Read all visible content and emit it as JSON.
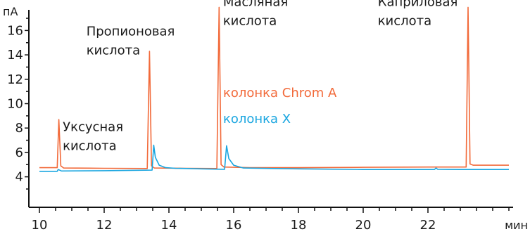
{
  "chart_data": {
    "type": "line",
    "ylabel": "пА",
    "xlabel": "мин",
    "xlim": [
      10,
      24.5
    ],
    "ylim": [
      1.5,
      18.5
    ],
    "x_ticks": [
      10,
      12,
      14,
      16,
      18,
      20,
      22
    ],
    "y_ticks": [
      4,
      6,
      8,
      10,
      12,
      14,
      16
    ],
    "grid": false,
    "legend_position": "middle-right (inline text)",
    "series": [
      {
        "name": "колонка Chrom A",
        "color": "#f26a3a",
        "points": [
          [
            10.0,
            4.75
          ],
          [
            10.55,
            4.75
          ],
          [
            10.6,
            8.7
          ],
          [
            10.66,
            4.9
          ],
          [
            10.75,
            4.72
          ],
          [
            12.0,
            4.7
          ],
          [
            13.33,
            4.68
          ],
          [
            13.4,
            14.3
          ],
          [
            13.46,
            4.9
          ],
          [
            13.55,
            4.72
          ],
          [
            14.5,
            4.7
          ],
          [
            15.48,
            4.68
          ],
          [
            15.55,
            17.9
          ],
          [
            15.61,
            5.0
          ],
          [
            15.7,
            4.8
          ],
          [
            16.5,
            4.75
          ],
          [
            18.0,
            4.75
          ],
          [
            20.0,
            4.78
          ],
          [
            22.0,
            4.8
          ],
          [
            23.18,
            4.8
          ],
          [
            23.24,
            17.9
          ],
          [
            23.3,
            5.05
          ],
          [
            23.4,
            4.95
          ],
          [
            24.5,
            4.95
          ]
        ]
      },
      {
        "name": "колонка X",
        "color": "#1aa6e0",
        "points": [
          [
            10.0,
            4.45
          ],
          [
            10.55,
            4.45
          ],
          [
            10.58,
            4.6
          ],
          [
            10.68,
            4.48
          ],
          [
            12.0,
            4.5
          ],
          [
            13.48,
            4.55
          ],
          [
            13.53,
            6.6
          ],
          [
            13.58,
            5.6
          ],
          [
            13.7,
            4.95
          ],
          [
            13.9,
            4.75
          ],
          [
            14.2,
            4.7
          ],
          [
            15.0,
            4.65
          ],
          [
            15.72,
            4.62
          ],
          [
            15.78,
            6.55
          ],
          [
            15.85,
            5.5
          ],
          [
            16.0,
            4.95
          ],
          [
            16.3,
            4.72
          ],
          [
            18.0,
            4.65
          ],
          [
            20.0,
            4.6
          ],
          [
            22.2,
            4.6
          ],
          [
            22.25,
            4.72
          ],
          [
            22.3,
            4.62
          ],
          [
            23.0,
            4.6
          ],
          [
            24.5,
            4.6
          ]
        ]
      }
    ],
    "annotations": [
      {
        "id": "acetic",
        "lines": [
          "Уксусная",
          "кислота"
        ],
        "x": 10.72,
        "y": 7.75
      },
      {
        "id": "propionic",
        "lines": [
          "Пропионовая",
          "кислота"
        ],
        "x": 11.45,
        "y": 15.6
      },
      {
        "id": "butyric",
        "lines": [
          "Масляная",
          "кислота"
        ],
        "x": 15.67,
        "y": 18.0
      },
      {
        "id": "caprylic",
        "lines": [
          "Каприловая",
          "кислота"
        ],
        "x": 20.45,
        "y": 18.0
      }
    ]
  }
}
